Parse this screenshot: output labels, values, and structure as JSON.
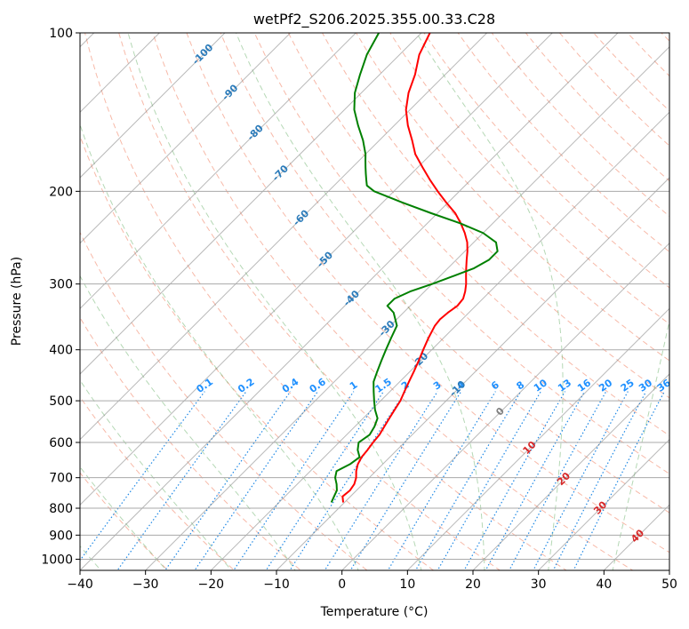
{
  "chart_data": {
    "type": "line",
    "title": "wetPf2_S206.2025.355.00.33.C28",
    "xlabel": "Temperature (°C)",
    "ylabel": "Pressure (hPa)",
    "xlim": [
      -40,
      50
    ],
    "ylim": [
      1050,
      100
    ],
    "x_ticks": [
      -40,
      -30,
      -20,
      -10,
      0,
      10,
      20,
      30,
      40,
      50
    ],
    "x_tick_labels": [
      "−40",
      "−30",
      "−20",
      "−10",
      "0",
      "10",
      "20",
      "30",
      "40",
      "50"
    ],
    "y_ticks": [
      100,
      200,
      300,
      400,
      500,
      600,
      700,
      800,
      900,
      1000
    ],
    "y_tick_labels": [
      "100",
      "200",
      "300",
      "400",
      "500",
      "600",
      "700",
      "800",
      "900",
      "1000"
    ],
    "y_scale": "log",
    "skew": "temperature lines skewed 45°",
    "colors": {
      "temperature": "#ff0000",
      "dewpoint": "#008000",
      "dry_adiabat": "#f08060",
      "moist_adiabat": "#5aa85a",
      "mixing_ratio": "#1e88e5",
      "isotherm": "#808080",
      "isotherm_label": "#2b7bba",
      "warm_label": "#d62728"
    },
    "series": [
      {
        "name": "Temperature",
        "color": "#ff0000",
        "pressure": [
          780,
          760,
          740,
          720,
          700,
          680,
          660,
          640,
          620,
          600,
          580,
          560,
          540,
          520,
          500,
          480,
          460,
          440,
          420,
          400,
          380,
          360,
          350,
          340,
          330,
          320,
          310,
          300,
          290,
          280,
          270,
          260,
          250,
          240,
          230,
          220,
          210,
          200,
          190,
          180,
          170,
          160,
          150,
          140,
          130,
          120,
          110,
          100
        ],
        "temperature": [
          -10.2,
          -11.2,
          -11.0,
          -11.3,
          -12.0,
          -13.0,
          -13.8,
          -14.3,
          -14.5,
          -14.8,
          -15.0,
          -15.5,
          -16.0,
          -16.5,
          -17.0,
          -17.8,
          -18.6,
          -19.4,
          -20.3,
          -21.3,
          -22.3,
          -23.2,
          -23.4,
          -23.2,
          -22.8,
          -23.0,
          -23.8,
          -24.8,
          -26.0,
          -27.2,
          -28.4,
          -29.6,
          -31.0,
          -32.8,
          -34.9,
          -37.3,
          -40.3,
          -43.3,
          -46.3,
          -49.3,
          -52.4,
          -55.0,
          -57.9,
          -60.6,
          -62.8,
          -64.6,
          -67.0,
          -68.7
        ]
      },
      {
        "name": "Dewpoint",
        "color": "#008000",
        "pressure": [
          780,
          760,
          740,
          720,
          700,
          680,
          660,
          640,
          620,
          600,
          580,
          560,
          540,
          520,
          500,
          480,
          460,
          440,
          420,
          400,
          380,
          360,
          340,
          330,
          320,
          310,
          300,
          290,
          280,
          270,
          260,
          250,
          240,
          230,
          220,
          210,
          200,
          195,
          190,
          185,
          180,
          175,
          170,
          160,
          150,
          140,
          130,
          120,
          110,
          100
        ],
        "temperature": [
          -12.0,
          -12.5,
          -13.0,
          -14.0,
          -15.2,
          -16.0,
          -15.0,
          -14.6,
          -16.0,
          -17.0,
          -16.5,
          -17.0,
          -17.8,
          -19.5,
          -21.0,
          -22.5,
          -24.0,
          -25.0,
          -26.0,
          -27.0,
          -28.0,
          -29.0,
          -31.5,
          -33.5,
          -33.5,
          -32.2,
          -30.0,
          -28.0,
          -26.0,
          -25.0,
          -25.0,
          -26.6,
          -30.0,
          -35.0,
          -41.0,
          -47.0,
          -53.0,
          -55.0,
          -56.0,
          -57.0,
          -58.0,
          -59.0,
          -60.0,
          -62.5,
          -65.5,
          -68.5,
          -71.0,
          -73.0,
          -75.0,
          -76.5
        ]
      }
    ],
    "isotherm_labels": [
      "-100",
      "-90",
      "-80",
      "-70",
      "-60",
      "-50",
      "-40",
      "-30",
      "-20",
      "-10"
    ],
    "isotherm_label_values": [
      -100,
      -90,
      -80,
      -70,
      -60,
      -50,
      -40,
      -30,
      -20,
      -10
    ],
    "mixing_ratio_labels": [
      "0.1",
      "0.2",
      "0.4",
      "0.6",
      "1",
      "1.5",
      "2",
      "3",
      "4",
      "6",
      "8",
      "10",
      "13",
      "16",
      "20",
      "25",
      "30",
      "36"
    ],
    "mixing_ratio_values": [
      0.1,
      0.2,
      0.4,
      0.6,
      1,
      1.5,
      2,
      3,
      4,
      6,
      8,
      10,
      13,
      16,
      20,
      25,
      30,
      36
    ],
    "mixing_ratio_label_pressure_hPa": 475,
    "warm_isotherm_labels": [
      "0",
      "10",
      "20",
      "30",
      "40"
    ],
    "warm_isotherm_values": [
      0,
      10,
      20,
      30,
      40
    ]
  }
}
